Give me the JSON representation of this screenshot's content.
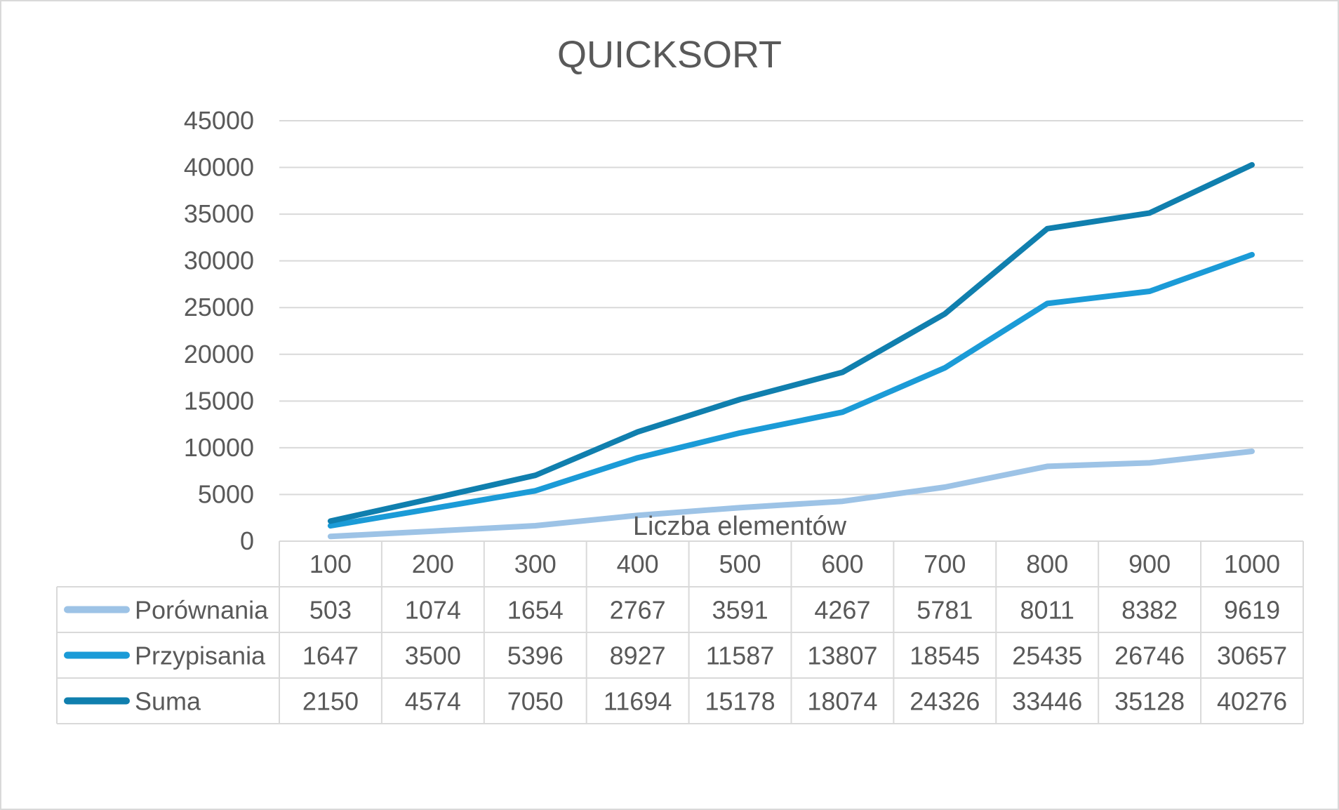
{
  "chart_data": {
    "type": "line",
    "title": "QUICKSORT",
    "xlabel": "Liczba elementów",
    "ylabel": "",
    "ylim": [
      0,
      45000
    ],
    "yticks": [
      0,
      5000,
      10000,
      15000,
      20000,
      25000,
      30000,
      35000,
      40000,
      45000
    ],
    "grid": true,
    "legend": "data-table",
    "categories": [
      "100",
      "200",
      "300",
      "400",
      "500",
      "600",
      "700",
      "800",
      "900",
      "1000"
    ],
    "series": [
      {
        "name": "Porównania",
        "color": "#9dc3e6",
        "values": [
          503,
          1074,
          1654,
          2767,
          3591,
          4267,
          5781,
          8011,
          8382,
          9619
        ]
      },
      {
        "name": "Przypisania",
        "color": "#1b9bd7",
        "values": [
          1647,
          3500,
          5396,
          8927,
          11587,
          13807,
          18545,
          25435,
          26746,
          30657
        ]
      },
      {
        "name": "Suma",
        "color": "#107fae",
        "values": [
          2150,
          4574,
          7050,
          11694,
          15178,
          18074,
          24326,
          33446,
          35128,
          40276
        ]
      }
    ]
  }
}
